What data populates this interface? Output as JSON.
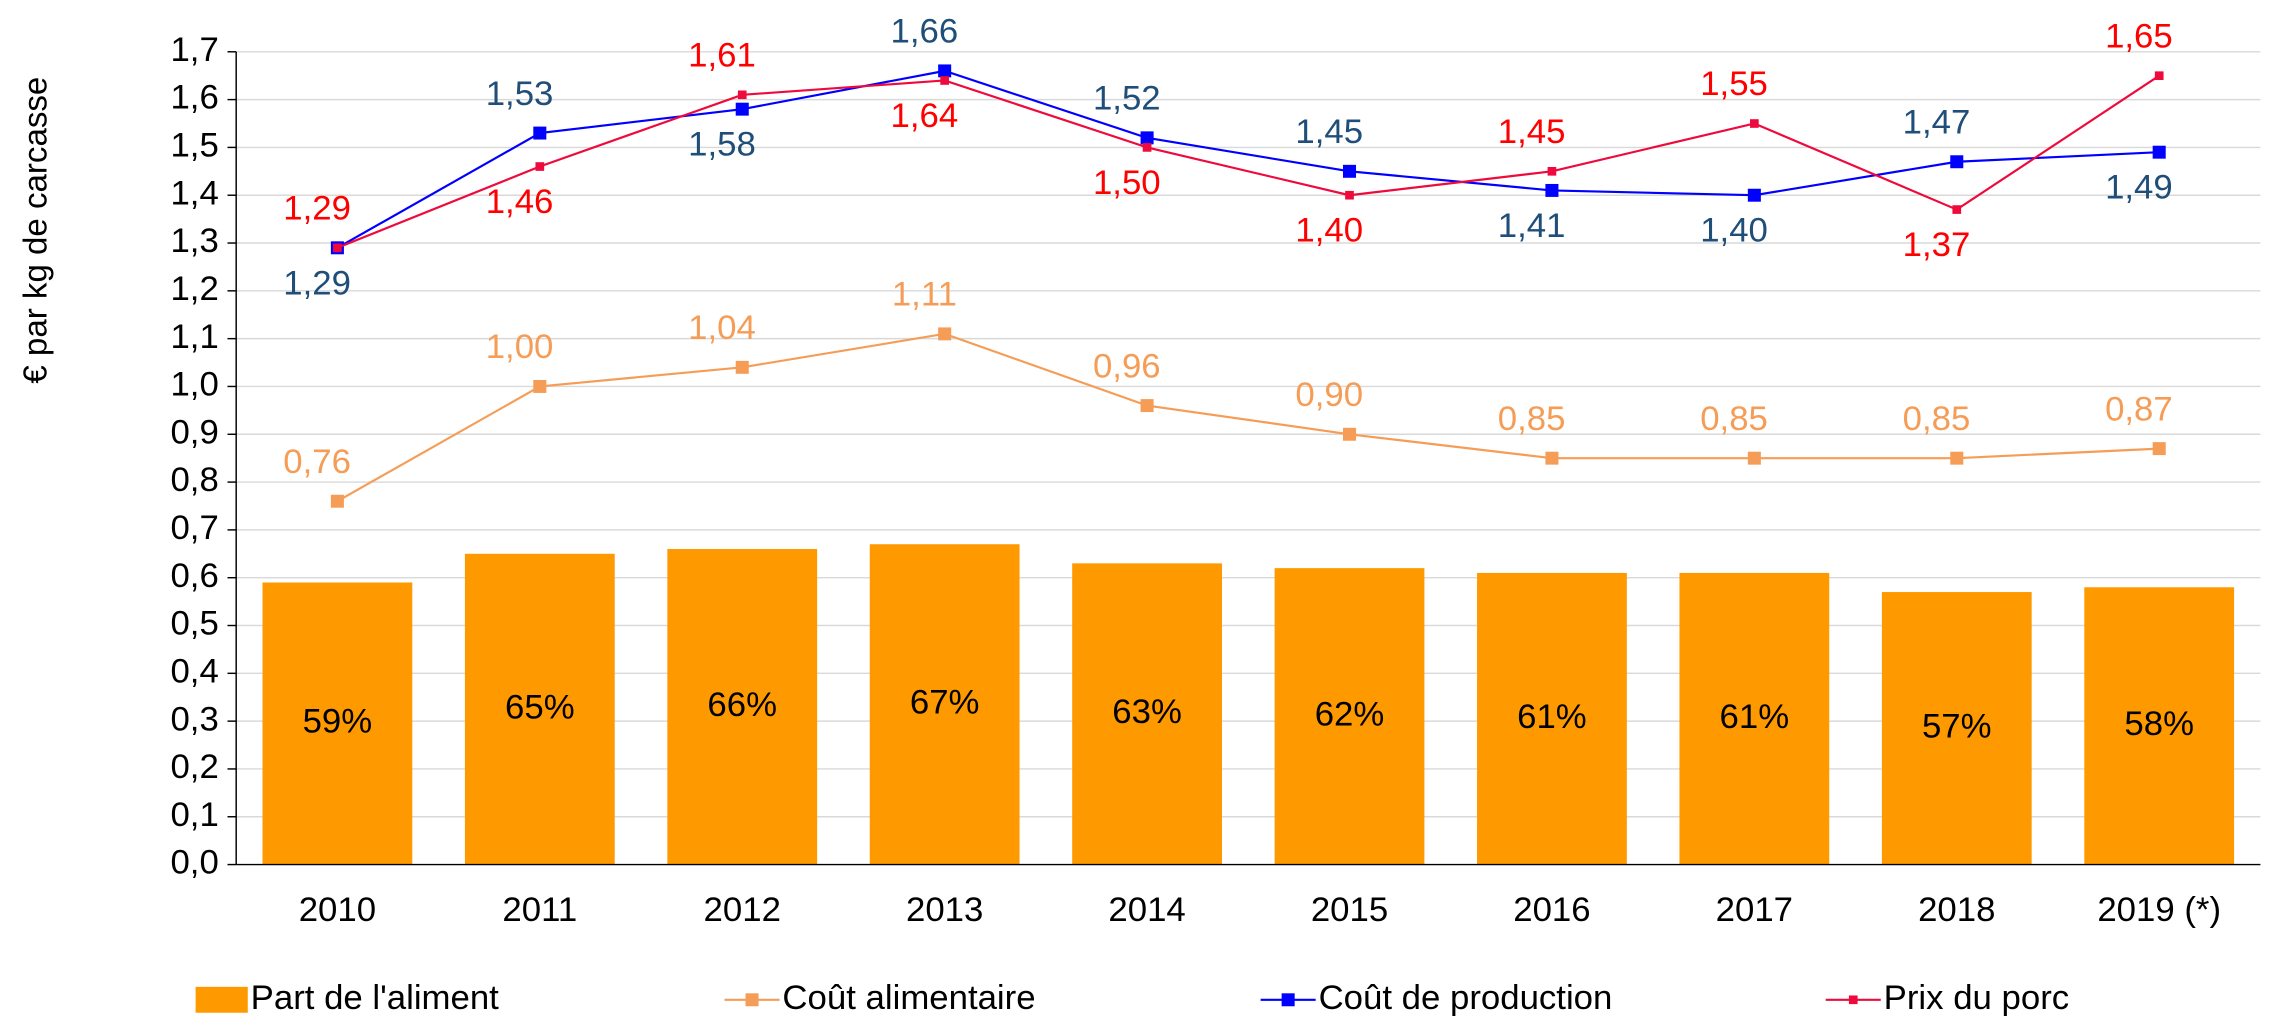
{
  "chart_data": {
    "type": "combo",
    "y_label": "€ par kg de carcasse",
    "categories": [
      "2010",
      "2011",
      "2012",
      "2013",
      "2014",
      "2015",
      "2016",
      "2017",
      "2018",
      "2019 (*)"
    ],
    "bars": {
      "name": "Part de l'aliment",
      "color": "#ff9900",
      "values": [
        0.59,
        0.65,
        0.66,
        0.67,
        0.63,
        0.62,
        0.61,
        0.61,
        0.57,
        0.58
      ],
      "value_labels": [
        "59%",
        "65%",
        "66%",
        "67%",
        "63%",
        "62%",
        "61%",
        "61%",
        "57%",
        "58%"
      ]
    },
    "series": [
      {
        "name": "Coût alimentaire",
        "color": "#f59d56",
        "label_color": "#f59d56",
        "values": [
          0.76,
          1.0,
          1.04,
          1.11,
          0.96,
          0.9,
          0.85,
          0.85,
          0.85,
          0.87
        ],
        "value_labels": [
          "0,76",
          "1,00",
          "1,04",
          "1,11",
          "0,96",
          "0,90",
          "0,85",
          "0,85",
          "0,85",
          "0,87"
        ]
      },
      {
        "name": "Coût de production",
        "color": "#0000ff",
        "label_color": "#1f4e79",
        "values": [
          1.29,
          1.53,
          1.58,
          1.66,
          1.52,
          1.45,
          1.41,
          1.4,
          1.47,
          1.49
        ],
        "value_labels": [
          "1,29",
          "1,53",
          "1,58",
          "1,66",
          "1,52",
          "1,45",
          "1,41",
          "1,40",
          "1,47",
          "1,49"
        ]
      },
      {
        "name": "Prix du porc",
        "color": "#ee0a3c",
        "label_color": "#ff0000",
        "values": [
          1.29,
          1.46,
          1.61,
          1.64,
          1.5,
          1.4,
          1.45,
          1.55,
          1.37,
          1.65
        ],
        "value_labels": [
          "1,29",
          "1,46",
          "1,61",
          "1,64",
          "1,50",
          "1,40",
          "1,45",
          "1,55",
          "1,37",
          "1,65"
        ]
      }
    ],
    "ylim": [
      0,
      1.7
    ],
    "yticks": [
      {
        "value": 0,
        "label": "0,0"
      },
      {
        "value": 0.1,
        "label": "0,1"
      },
      {
        "value": 0.2,
        "label": "0,2"
      },
      {
        "value": 0.3,
        "label": "0,3"
      },
      {
        "value": 0.4,
        "label": "0,4"
      },
      {
        "value": 0.5,
        "label": "0,5"
      },
      {
        "value": 0.6,
        "label": "0,6"
      },
      {
        "value": 0.7,
        "label": "0,7"
      },
      {
        "value": 0.8,
        "label": "0,8"
      },
      {
        "value": 0.9,
        "label": "0,9"
      },
      {
        "value": 1.0,
        "label": "1,0"
      },
      {
        "value": 1.1,
        "label": "1,1"
      },
      {
        "value": 1.2,
        "label": "1,2"
      },
      {
        "value": 1.3,
        "label": "1,3"
      },
      {
        "value": 1.4,
        "label": "1,4"
      },
      {
        "value": 1.5,
        "label": "1,5"
      },
      {
        "value": 1.6,
        "label": "1,6"
      },
      {
        "value": 1.7,
        "label": "1,7"
      }
    ],
    "grid": true,
    "legend": "bottom"
  }
}
